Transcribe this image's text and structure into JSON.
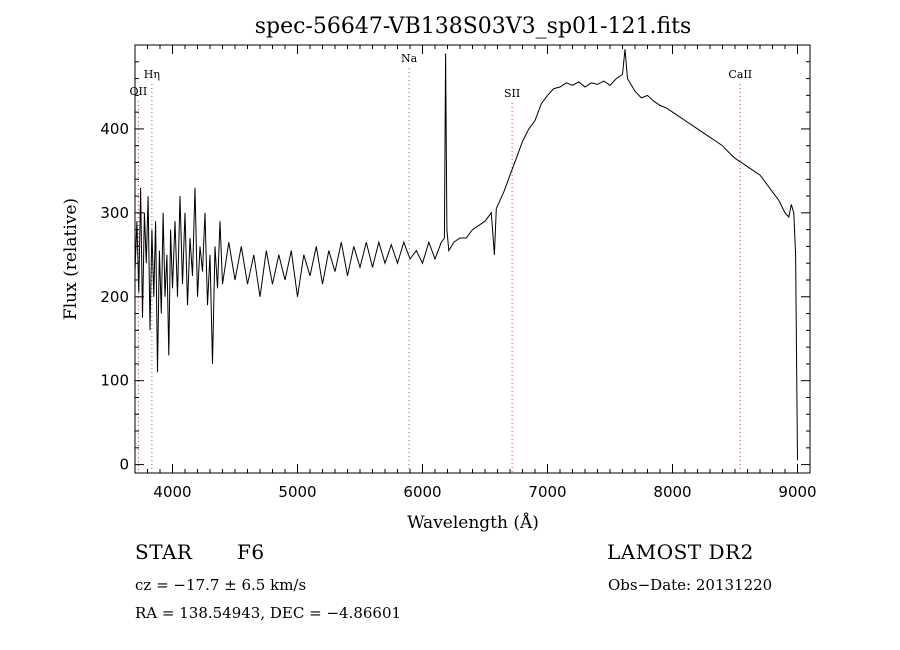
{
  "chart_data": {
    "type": "line",
    "title": "spec-56647-VB138S03V3_sp01-121.fits",
    "xlabel": "Wavelength (Å)",
    "ylabel": "Flux (relative)",
    "xlim": [
      3700,
      9100
    ],
    "ylim": [
      -10,
      500
    ],
    "xticks": [
      4000,
      5000,
      6000,
      7000,
      8000,
      9000
    ],
    "yticks": [
      0,
      100,
      200,
      300,
      400
    ],
    "grid": false,
    "series": [
      {
        "points": [
          [
            3700,
            230
          ],
          [
            3715,
            290
          ],
          [
            3730,
            205
          ],
          [
            3745,
            330
          ],
          [
            3760,
            175
          ],
          [
            3775,
            300
          ],
          [
            3790,
            240
          ],
          [
            3805,
            320
          ],
          [
            3820,
            160
          ],
          [
            3835,
            280
          ],
          [
            3850,
            200
          ],
          [
            3865,
            290
          ],
          [
            3880,
            110
          ],
          [
            3895,
            255
          ],
          [
            3910,
            180
          ],
          [
            3925,
            300
          ],
          [
            3940,
            200
          ],
          [
            3955,
            250
          ],
          [
            3970,
            130
          ],
          [
            3985,
            280
          ],
          [
            4000,
            210
          ],
          [
            4020,
            290
          ],
          [
            4040,
            200
          ],
          [
            4060,
            320
          ],
          [
            4080,
            215
          ],
          [
            4100,
            300
          ],
          [
            4120,
            190
          ],
          [
            4140,
            270
          ],
          [
            4160,
            225
          ],
          [
            4180,
            330
          ],
          [
            4200,
            200
          ],
          [
            4220,
            260
          ],
          [
            4240,
            230
          ],
          [
            4260,
            300
          ],
          [
            4280,
            190
          ],
          [
            4300,
            250
          ],
          [
            4320,
            120
          ],
          [
            4340,
            260
          ],
          [
            4360,
            210
          ],
          [
            4380,
            290
          ],
          [
            4400,
            215
          ],
          [
            4450,
            265
          ],
          [
            4500,
            220
          ],
          [
            4550,
            260
          ],
          [
            4600,
            215
          ],
          [
            4650,
            250
          ],
          [
            4700,
            200
          ],
          [
            4750,
            255
          ],
          [
            4800,
            215
          ],
          [
            4850,
            250
          ],
          [
            4900,
            220
          ],
          [
            4950,
            255
          ],
          [
            5000,
            200
          ],
          [
            5050,
            250
          ],
          [
            5100,
            225
          ],
          [
            5150,
            260
          ],
          [
            5200,
            215
          ],
          [
            5250,
            255
          ],
          [
            5300,
            230
          ],
          [
            5350,
            265
          ],
          [
            5400,
            225
          ],
          [
            5450,
            260
          ],
          [
            5500,
            235
          ],
          [
            5550,
            265
          ],
          [
            5600,
            235
          ],
          [
            5650,
            265
          ],
          [
            5700,
            240
          ],
          [
            5750,
            262
          ],
          [
            5800,
            240
          ],
          [
            5850,
            265
          ],
          [
            5900,
            245
          ],
          [
            5950,
            255
          ],
          [
            6000,
            240
          ],
          [
            6050,
            265
          ],
          [
            6100,
            245
          ],
          [
            6150,
            265
          ],
          [
            6175,
            270
          ],
          [
            6185,
            490
          ],
          [
            6195,
            280
          ],
          [
            6210,
            255
          ],
          [
            6250,
            265
          ],
          [
            6300,
            270
          ],
          [
            6350,
            270
          ],
          [
            6400,
            280
          ],
          [
            6450,
            285
          ],
          [
            6500,
            290
          ],
          [
            6550,
            300
          ],
          [
            6575,
            250
          ],
          [
            6590,
            305
          ],
          [
            6650,
            325
          ],
          [
            6700,
            345
          ],
          [
            6750,
            365
          ],
          [
            6800,
            385
          ],
          [
            6850,
            400
          ],
          [
            6900,
            410
          ],
          [
            6950,
            430
          ],
          [
            7000,
            440
          ],
          [
            7050,
            448
          ],
          [
            7100,
            450
          ],
          [
            7150,
            455
          ],
          [
            7200,
            452
          ],
          [
            7250,
            456
          ],
          [
            7300,
            450
          ],
          [
            7350,
            455
          ],
          [
            7400,
            453
          ],
          [
            7450,
            457
          ],
          [
            7500,
            452
          ],
          [
            7550,
            460
          ],
          [
            7600,
            465
          ],
          [
            7620,
            495
          ],
          [
            7640,
            460
          ],
          [
            7700,
            445
          ],
          [
            7750,
            437
          ],
          [
            7800,
            440
          ],
          [
            7850,
            433
          ],
          [
            7900,
            428
          ],
          [
            7950,
            425
          ],
          [
            8000,
            420
          ],
          [
            8050,
            415
          ],
          [
            8100,
            410
          ],
          [
            8150,
            405
          ],
          [
            8200,
            400
          ],
          [
            8250,
            395
          ],
          [
            8300,
            390
          ],
          [
            8350,
            385
          ],
          [
            8400,
            380
          ],
          [
            8450,
            372
          ],
          [
            8500,
            365
          ],
          [
            8550,
            360
          ],
          [
            8600,
            355
          ],
          [
            8650,
            350
          ],
          [
            8700,
            345
          ],
          [
            8750,
            335
          ],
          [
            8800,
            325
          ],
          [
            8850,
            315
          ],
          [
            8900,
            300
          ],
          [
            8930,
            295
          ],
          [
            8950,
            310
          ],
          [
            8970,
            300
          ],
          [
            8985,
            250
          ],
          [
            9000,
            5
          ]
        ]
      }
    ],
    "lines": [
      {
        "label": "OII",
        "x": 3727
      },
      {
        "label": "Hη",
        "x": 3835
      },
      {
        "label": "Na",
        "x": 5893
      },
      {
        "label": "SII",
        "x": 6717
      },
      {
        "label": "CaII",
        "x": 8542
      }
    ]
  },
  "info": {
    "object_class": "STAR",
    "subclass": "F6",
    "survey": "LAMOST DR2",
    "cz": "cz = −17.7 ± 6.5 km/s",
    "obs_date": "Obs−Date: 20131220",
    "coords": "RA = 138.54943, DEC =  −4.86601"
  },
  "colors": {
    "spectrum": "#000000",
    "line_markers": "#cc4444",
    "axes": "#000000"
  }
}
